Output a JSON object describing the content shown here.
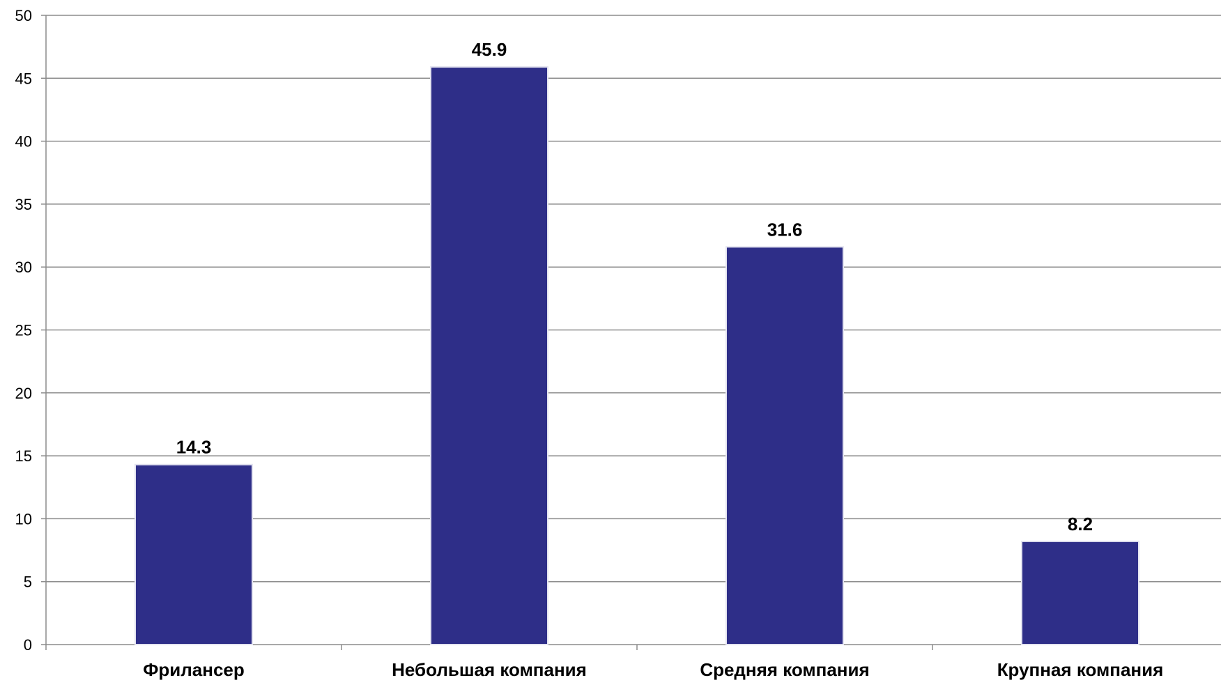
{
  "chart_data": {
    "type": "bar",
    "categories": [
      "Фрилансер",
      "Небольшая компания",
      "Средняя компания",
      "Крупная компания"
    ],
    "values": [
      14.3,
      45.9,
      31.6,
      8.2
    ],
    "data_labels": [
      "14.3",
      "45.9",
      "31.6",
      "8.2"
    ],
    "title": "",
    "xlabel": "",
    "ylabel": "",
    "ylim": [
      0,
      50
    ],
    "yticks": [
      0,
      5,
      10,
      15,
      20,
      25,
      30,
      35,
      40,
      45,
      50
    ],
    "grid": true,
    "legend": "none",
    "bar_color": "#2E2E88",
    "grid_color": "#8C8C8C"
  }
}
